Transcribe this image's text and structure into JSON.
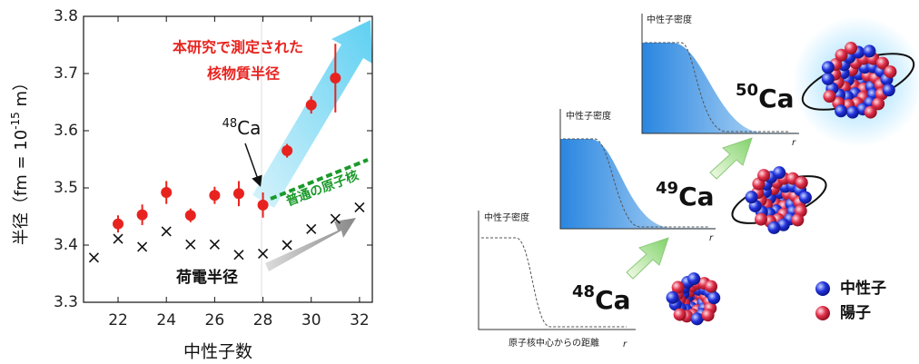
{
  "chart_data": {
    "type": "scatter",
    "y_label": [
      "半径（fm = 10",
      "-15",
      " m）"
    ],
    "x_label": "中性子数",
    "xlim": [
      20.57,
      32.53
    ],
    "ylim": [
      3.3,
      3.8
    ],
    "xticks": [
      22,
      24,
      26,
      28,
      30,
      32
    ],
    "yticks": [
      3.3,
      3.4,
      3.5,
      3.6,
      3.7,
      3.8
    ],
    "series": [
      {
        "color": "#e8231f",
        "marker": "dot",
        "x": [
          22,
          23,
          24,
          25,
          26,
          27,
          28,
          29,
          30,
          31
        ],
        "values": [
          3.437,
          3.453,
          3.492,
          3.452,
          3.487,
          3.49,
          3.47,
          3.565,
          3.645,
          3.692
        ],
        "errors": [
          0.015,
          0.018,
          0.02,
          0.012,
          0.015,
          0.022,
          0.022,
          0.012,
          0.015,
          0.06
        ]
      },
      {
        "color": "#111111",
        "marker": "cross",
        "x": [
          21,
          22,
          23,
          24,
          25,
          26,
          27,
          28,
          29,
          30,
          31,
          32
        ],
        "values": [
          3.378,
          3.411,
          3.397,
          3.424,
          3.401,
          3.401,
          3.383,
          3.385,
          3.4,
          3.428,
          3.446,
          3.466
        ]
      }
    ],
    "annotations": {
      "measured": [
        "本研究で測定された",
        "核物質半径"
      ],
      "marker": {
        "mass": "48",
        "symbol": "Ca"
      },
      "normal": "普通の原子核",
      "charge": "荷電半径"
    }
  },
  "diagram": {
    "panels": [
      {
        "y_label": "中性子密度",
        "x_label": "原子核中心からの距離",
        "x_symbol": "r"
      },
      {
        "y_label": "中性子密度",
        "x_symbol": "r"
      },
      {
        "y_label": "中性子密度",
        "x_symbol": "r"
      }
    ],
    "isotopes": [
      {
        "mass": "48",
        "symbol": "Ca"
      },
      {
        "mass": "49",
        "symbol": "Ca"
      },
      {
        "mass": "50",
        "symbol": "Ca"
      }
    ],
    "legend": [
      "中性子",
      "陽子"
    ]
  }
}
